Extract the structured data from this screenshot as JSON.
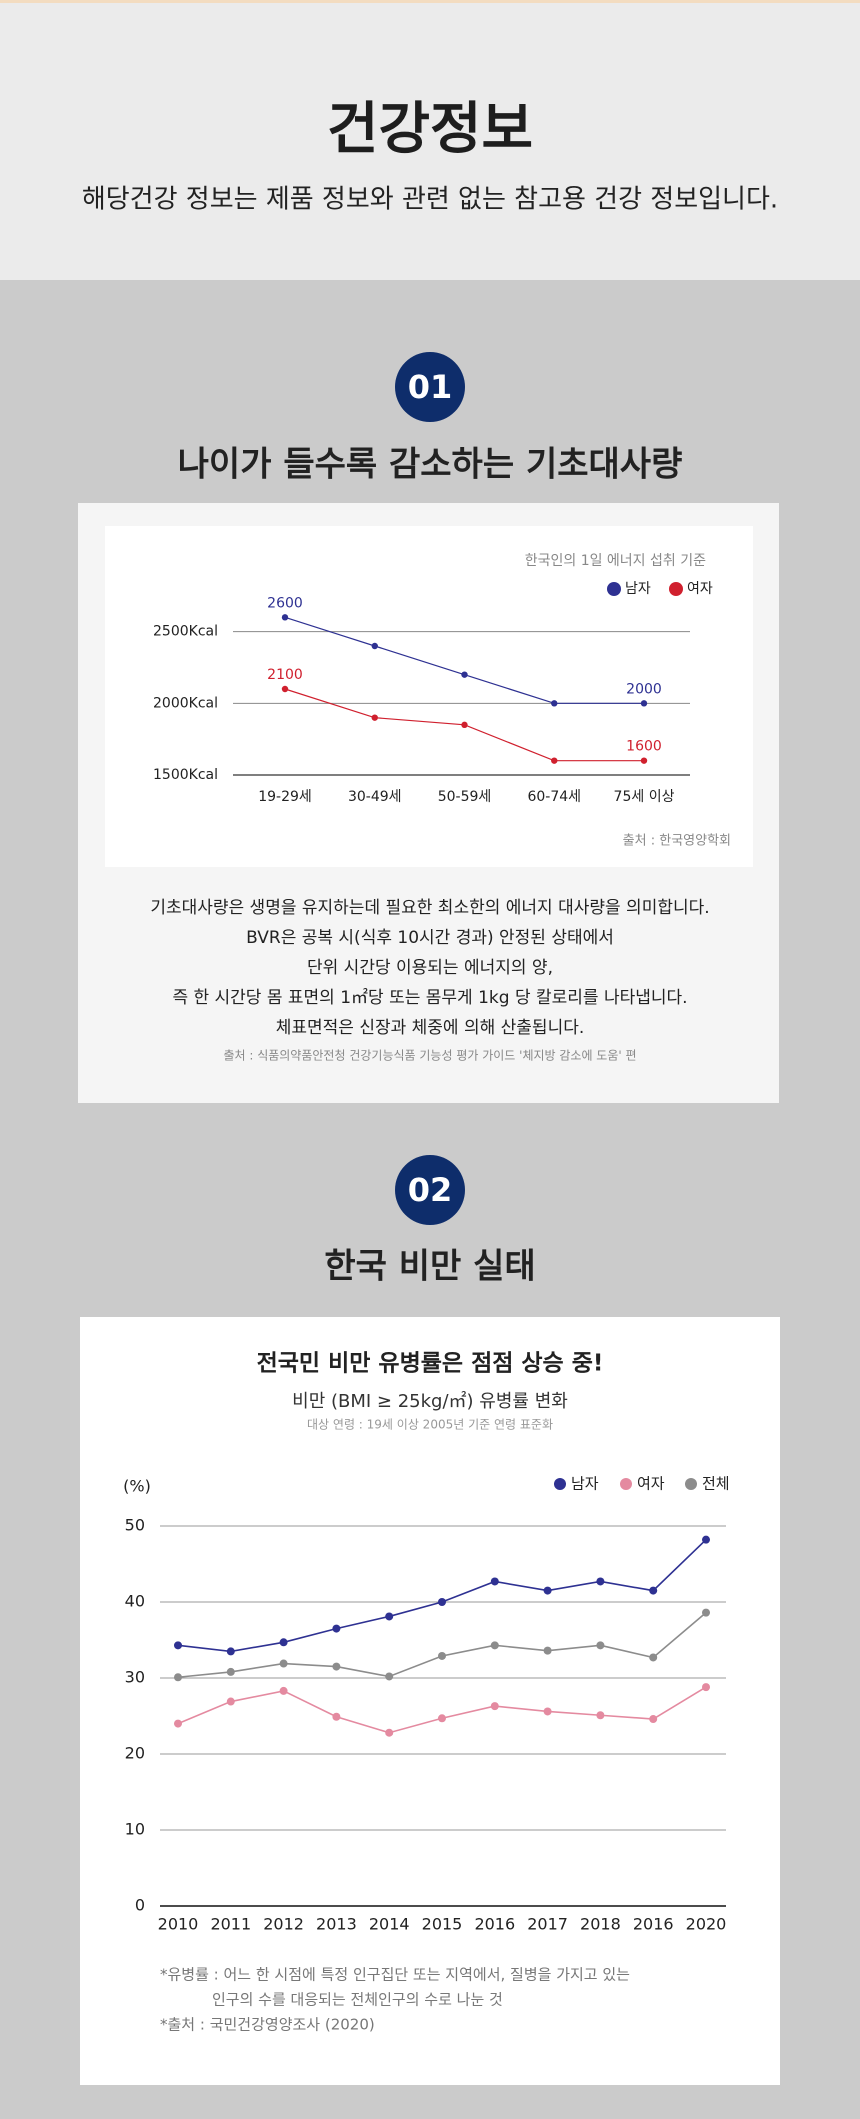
{
  "header": {
    "title": "건강정보",
    "subtitle": "해당건강 정보는 제품 정보와 관련 없는 참고용 건강 정보입니다."
  },
  "section1": {
    "number": "01",
    "heading": "나이가 들수록 감소하는 기초대사량",
    "description": [
      "기초대사량은 생명을 유지하는데 필요한 최소한의 에너지 대사량을 의미합니다.",
      "BVR은 공복 시(식후 10시간 경과) 안정된 상태에서",
      "단위 시간당 이용되는 에너지의 양,",
      "즉 한 시간당 몸 표면의 1㎡당 또는 몸무게 1kg 당 칼로리를 나타냅니다.",
      "체표면적은 신장과 체중에 의해 산출됩니다."
    ],
    "description_source": "출처 : 식품의약품안전청 건강기능식품 기능성 평가 가이드 '체지방 감소에 도움' 편"
  },
  "section2": {
    "number": "02",
    "heading": "한국 비만 실태",
    "footnotes": [
      "*유병률 : 어느 한 시점에 특정 인구집단 또는 지역에서, 질병을 가지고 있는",
      "인구의 수를 대응되는 전체인구의 수로 나눈 것",
      "*출처 : 국민건강영양조사 (2020)"
    ]
  },
  "chart_data": [
    {
      "type": "line",
      "subtitle": "한국인의 1일 에너지 섭취 기준",
      "source": "출처 : 한국영양학회",
      "categories": [
        "19-29세",
        "30-49세",
        "50-59세",
        "60-74세",
        "75세 이상"
      ],
      "series": [
        {
          "name": "남자",
          "color": "#2e3192",
          "values": [
            2600,
            2400,
            2200,
            2000,
            2000
          ],
          "value_labels": [
            "2600",
            null,
            null,
            null,
            "2000"
          ]
        },
        {
          "name": "여자",
          "color": "#d0202e",
          "values": [
            2100,
            1900,
            1850,
            1600,
            1600
          ],
          "value_labels": [
            "2100",
            null,
            null,
            null,
            "1600"
          ]
        }
      ],
      "ylim": [
        1500,
        2700
      ],
      "yticks": [
        {
          "value": 1500,
          "label": "1500Kcal"
        },
        {
          "value": 2000,
          "label": "2000Kcal"
        },
        {
          "value": 2500,
          "label": "2500Kcal"
        }
      ],
      "grid": true,
      "legend": "top-right"
    },
    {
      "type": "line",
      "title": "전국민 비만 유병률은 점점 상승 중!",
      "subtitle": "비만 (BMI ≥ 25kg/㎡) 유병률 변화",
      "note": "대상 연령 : 19세 이상 2005년 기준 연령 표준화",
      "y_label": "(%)",
      "categories": [
        "2010",
        "2011",
        "2012",
        "2013",
        "2014",
        "2015",
        "2016",
        "2017",
        "2018",
        "2016",
        "2020"
      ],
      "series": [
        {
          "name": "남자",
          "color": "#2e3192",
          "values": [
            34.3,
            33.5,
            34.7,
            36.5,
            38.1,
            40.0,
            42.7,
            41.5,
            42.7,
            41.5,
            48.2
          ]
        },
        {
          "name": "여자",
          "color": "#e48aa0",
          "values": [
            24.0,
            26.9,
            28.3,
            24.9,
            22.8,
            24.7,
            26.3,
            25.6,
            25.1,
            24.6,
            28.8
          ]
        },
        {
          "name": "전체",
          "color": "#8c8c8c",
          "values": [
            30.1,
            30.8,
            31.9,
            31.5,
            30.2,
            32.9,
            34.3,
            33.6,
            34.3,
            32.7,
            38.6
          ]
        }
      ],
      "ylim": [
        0,
        50
      ],
      "yticks": [
        0,
        10,
        20,
        30,
        40,
        50
      ],
      "grid": true,
      "legend": "top-right"
    }
  ]
}
